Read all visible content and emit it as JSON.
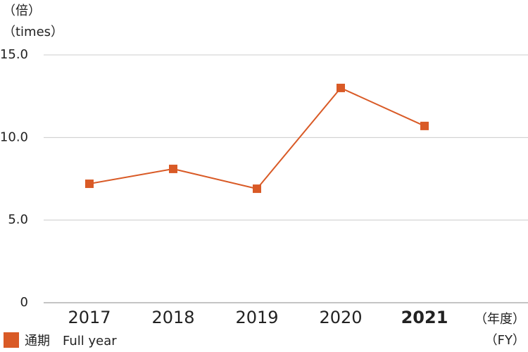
{
  "chart_data": {
    "type": "line",
    "y_label": "（倍）",
    "y_label_en": "（times）",
    "x_label": "（年度）",
    "x_label_en": "（FY）",
    "categories": [
      "2017",
      "2018",
      "2019",
      "2020",
      "2021"
    ],
    "series": [
      {
        "name": "通期　Full year",
        "color": "#d95a26",
        "values": [
          7.2,
          8.1,
          6.9,
          13.0,
          10.7
        ]
      }
    ],
    "ylim": [
      0,
      15
    ],
    "yticks": [
      0,
      {
        "value": 5,
        "label": "5.0"
      },
      {
        "value": 10,
        "label": "10.0"
      },
      {
        "value": 15,
        "label": "15.0"
      }
    ],
    "grid": true
  }
}
